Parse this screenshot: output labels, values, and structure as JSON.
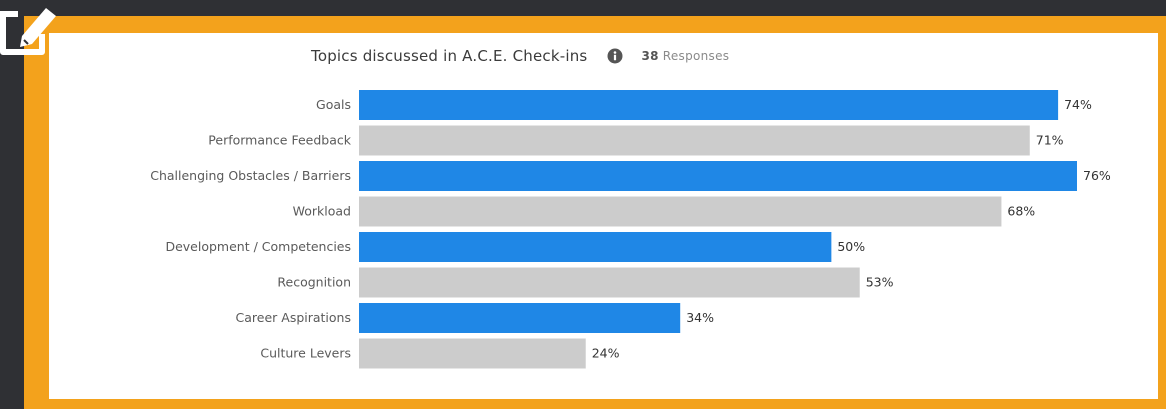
{
  "colors": {
    "background": "#2f3034",
    "frame": "#f3a21c",
    "card": "#ffffff",
    "highlight_bar": "#1f87e6",
    "neutral_bar": "#cccccc",
    "label_text": "#5a5a5a",
    "value_text": "#333333"
  },
  "icons": {
    "edit": "edit-icon",
    "info": "info-icon"
  },
  "header": {
    "title": "Topics discussed in A.C.E. Check-ins",
    "responses_count": "38",
    "responses_label": "Responses"
  },
  "chart_data": {
    "type": "bar",
    "orientation": "horizontal",
    "title": "Topics discussed in A.C.E. Check-ins",
    "categories": [
      "Goals",
      "Performance Feedback",
      "Challenging Obstacles / Barriers",
      "Workload",
      "Development / Competencies",
      "Recognition",
      "Career Aspirations",
      "Culture Levers"
    ],
    "values": [
      74,
      71,
      76,
      68,
      50,
      53,
      34,
      24
    ],
    "value_labels": [
      "74%",
      "71%",
      "76%",
      "68%",
      "50%",
      "53%",
      "34%",
      "24%"
    ],
    "highlighted": [
      true,
      false,
      true,
      false,
      true,
      false,
      true,
      false
    ],
    "unit": "%",
    "xlim": [
      0,
      76
    ],
    "grid": false,
    "legend": "none"
  }
}
